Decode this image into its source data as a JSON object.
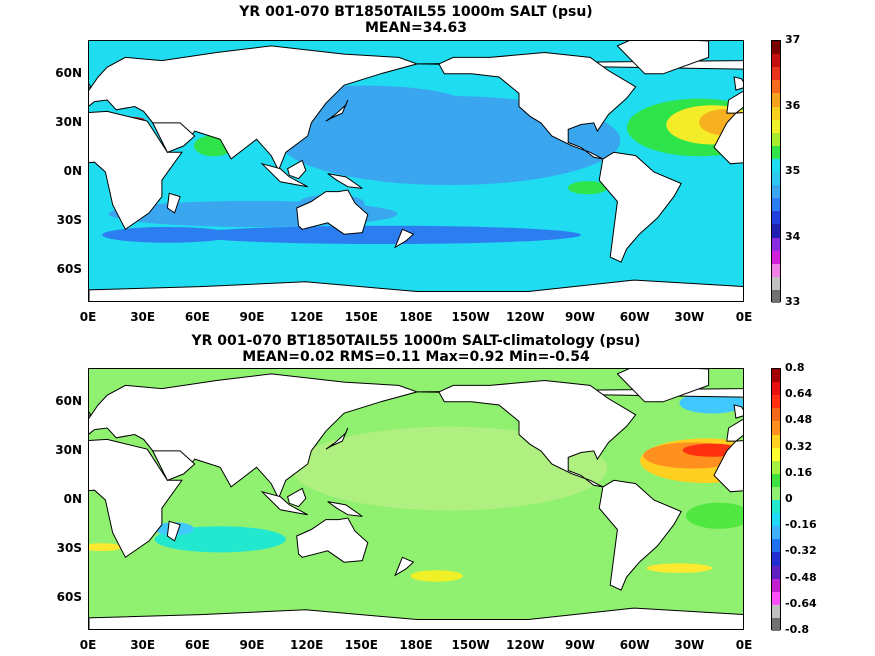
{
  "panels": [
    {
      "title_line1": "YR 001-070 BT1850TAIL55 1000m SALT (psu)",
      "title_line2": "MEAN=34.63",
      "background": "#20dcf0",
      "blobs": [
        {
          "cx": 0.55,
          "cy": 0.38,
          "rx": 0.26,
          "ry": 0.17,
          "color": "#3aa6f0"
        },
        {
          "cx": 0.42,
          "cy": 0.25,
          "rx": 0.16,
          "ry": 0.08,
          "color": "#3aa6f0"
        },
        {
          "cx": 0.25,
          "cy": 0.66,
          "rx": 0.22,
          "ry": 0.05,
          "color": "#3aa6f0"
        },
        {
          "cx": 0.45,
          "cy": 0.74,
          "rx": 0.3,
          "ry": 0.035,
          "color": "#2c7ef0"
        },
        {
          "cx": 0.12,
          "cy": 0.74,
          "rx": 0.1,
          "ry": 0.03,
          "color": "#2c7ef0"
        },
        {
          "cx": 0.37,
          "cy": 0.62,
          "rx": 0.05,
          "ry": 0.035,
          "color": "#3aa6f0"
        },
        {
          "cx": 0.93,
          "cy": 0.33,
          "rx": 0.11,
          "ry": 0.11,
          "color": "#2ee44a"
        },
        {
          "cx": 0.95,
          "cy": 0.32,
          "rx": 0.07,
          "ry": 0.075,
          "color": "#f4ec28"
        },
        {
          "cx": 0.97,
          "cy": 0.31,
          "rx": 0.04,
          "ry": 0.05,
          "color": "#f6b020"
        },
        {
          "cx": 0.05,
          "cy": 0.3,
          "rx": 0.035,
          "ry": 0.012,
          "color": "#b01010"
        },
        {
          "cx": 0.19,
          "cy": 0.4,
          "rx": 0.03,
          "ry": 0.04,
          "color": "#2ee44a"
        },
        {
          "cx": 0.76,
          "cy": 0.56,
          "rx": 0.03,
          "ry": 0.025,
          "color": "#2ee44a"
        }
      ],
      "y_ticks": [
        "60N",
        "30N",
        "0N",
        "30S",
        "60S"
      ],
      "x_ticks": [
        "0E",
        "30E",
        "60E",
        "90E",
        "120E",
        "150E",
        "180E",
        "150W",
        "120W",
        "90W",
        "60W",
        "30W",
        "0E"
      ],
      "colorbar": {
        "labels": [
          "37",
          "36",
          "35",
          "34",
          "33"
        ],
        "colors": [
          "#7a0000",
          "#c41010",
          "#e83418",
          "#f26a1e",
          "#f6a020",
          "#f8d020",
          "#f0f028",
          "#a8ec30",
          "#2ee44a",
          "#20dcf0",
          "#2cc8f0",
          "#3aa6f0",
          "#2c7ef0",
          "#2040e0",
          "#2020b0",
          "#8a2be2",
          "#d020d8",
          "#f080e8",
          "#c0c0c0",
          "#707070"
        ]
      }
    },
    {
      "title_line1": "YR 001-070 BT1850TAIL55 1000m SALT-climatology (psu)",
      "title_line2": "MEAN=0.02   RMS=0.11   Max=0.92   Min=-0.54",
      "background": "#90f070",
      "blobs": [
        {
          "cx": 0.55,
          "cy": 0.38,
          "rx": 0.24,
          "ry": 0.16,
          "color": "#b0f080"
        },
        {
          "cx": 0.2,
          "cy": 0.65,
          "rx": 0.1,
          "ry": 0.05,
          "color": "#22e8d0"
        },
        {
          "cx": 0.13,
          "cy": 0.61,
          "rx": 0.03,
          "ry": 0.025,
          "color": "#40c8ff"
        },
        {
          "cx": 0.94,
          "cy": 0.35,
          "rx": 0.1,
          "ry": 0.085,
          "color": "#ffd020"
        },
        {
          "cx": 0.92,
          "cy": 0.33,
          "rx": 0.075,
          "ry": 0.05,
          "color": "#ff9020"
        },
        {
          "cx": 0.95,
          "cy": 0.31,
          "rx": 0.045,
          "ry": 0.025,
          "color": "#ff3010"
        },
        {
          "cx": 0.96,
          "cy": 0.56,
          "rx": 0.05,
          "ry": 0.05,
          "color": "#50e840"
        },
        {
          "cx": 0.9,
          "cy": 0.76,
          "rx": 0.05,
          "ry": 0.018,
          "color": "#ffe830"
        },
        {
          "cx": 0.53,
          "cy": 0.79,
          "rx": 0.04,
          "ry": 0.022,
          "color": "#f0f028"
        },
        {
          "cx": 0.02,
          "cy": 0.68,
          "rx": 0.03,
          "ry": 0.015,
          "color": "#ffe830"
        },
        {
          "cx": 0.95,
          "cy": 0.13,
          "rx": 0.05,
          "ry": 0.04,
          "color": "#40c8ff"
        }
      ],
      "y_ticks": [
        "60N",
        "30N",
        "0N",
        "30S",
        "60S"
      ],
      "x_ticks": [
        "0E",
        "30E",
        "60E",
        "90E",
        "120E",
        "150E",
        "180E",
        "150W",
        "120W",
        "90W",
        "60W",
        "30W",
        "0E"
      ],
      "colorbar": {
        "labels": [
          "0.8",
          "0.64",
          "0.48",
          "0.32",
          "0.16",
          "0",
          "-0.16",
          "-0.32",
          "-0.48",
          "-0.64",
          "-0.8"
        ],
        "colors": [
          "#a00000",
          "#e81010",
          "#ff3010",
          "#f06818",
          "#ff9020",
          "#ffd020",
          "#ffff30",
          "#a8f040",
          "#40e040",
          "#90f070",
          "#22e8d0",
          "#20d8f8",
          "#40b0ff",
          "#2070f0",
          "#2030d0",
          "#6020c0",
          "#c020d0",
          "#ff50ff",
          "#c0c0c0",
          "#707070"
        ]
      }
    }
  ]
}
